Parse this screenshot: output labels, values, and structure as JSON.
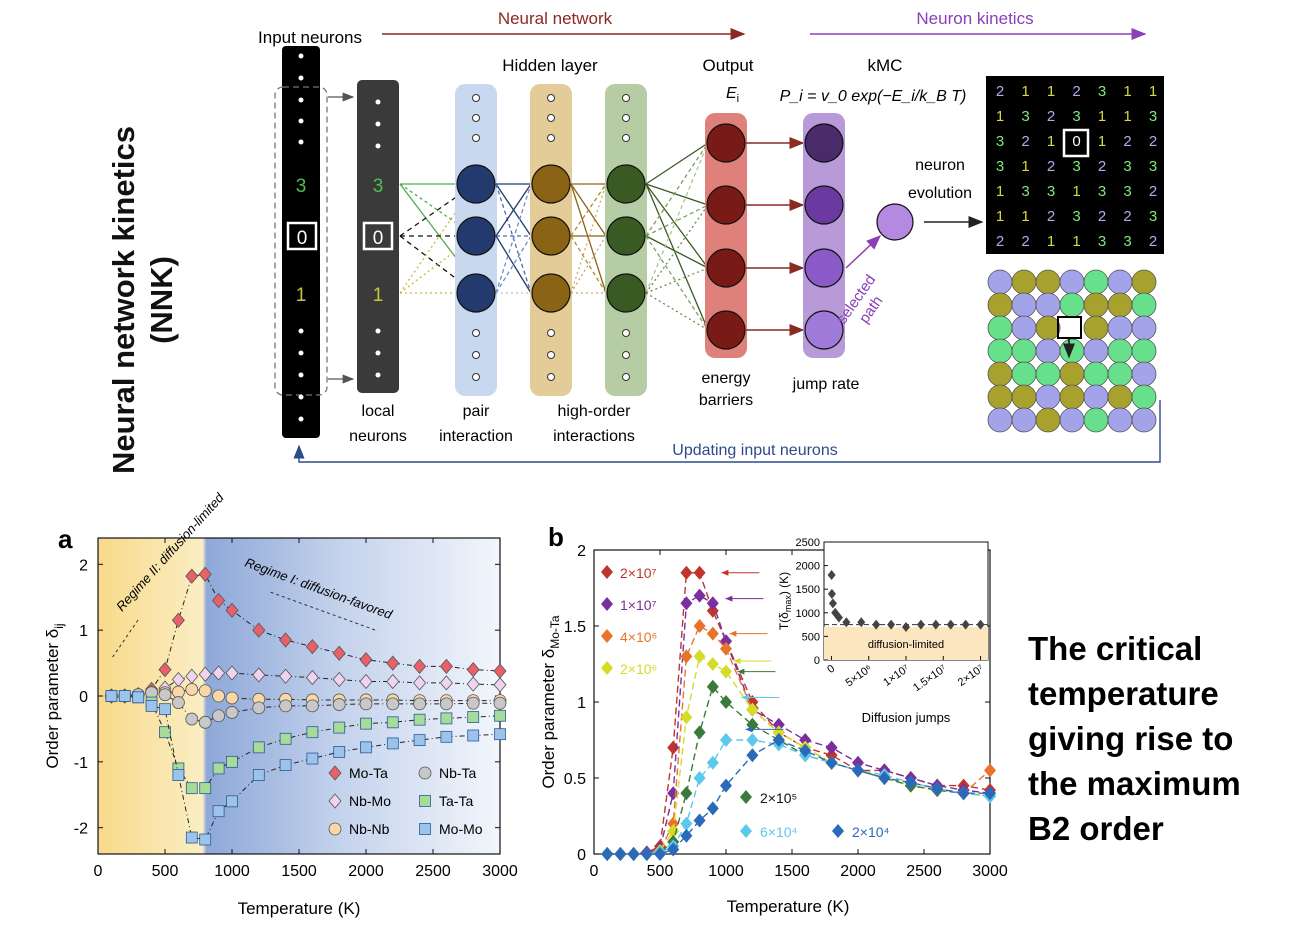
{
  "side_title": {
    "line1": "Neural network kinetics",
    "line2": "(NNK)"
  },
  "diagram": {
    "arrow_nn": "Neural network",
    "arrow_kinetics": "Neuron kinetics",
    "input_neurons": "Input neurons",
    "hidden_layer": "Hidden layer",
    "output": "Output",
    "output_symbol": "E",
    "output_sub": "i",
    "kmc": "kMC",
    "kmc_formula": "P_i = v_0 exp(−E_i/k_B T)",
    "local_neurons_1": "local",
    "local_neurons_2": "neurons",
    "pair_1": "pair",
    "pair_2": "interaction",
    "high_1": "high-order",
    "high_2": "interactions",
    "energy_1": "energy",
    "energy_2": "barriers",
    "jump_rate": "jump rate",
    "neuron_evolution_1": "neuron",
    "neuron_evolution_2": "evolution",
    "selected_path_1": "selected",
    "selected_path_2": "path",
    "updating": "Updating input neurons",
    "digit_3": "3",
    "digit_0": "0",
    "digit_1": "1",
    "grid": [
      [
        "2",
        "1",
        "1",
        "2",
        "3",
        "1",
        "1"
      ],
      [
        "1",
        "3",
        "2",
        "3",
        "1",
        "1",
        "3"
      ],
      [
        "3",
        "2",
        "1",
        "0",
        "1",
        "2",
        "2"
      ],
      [
        "3",
        "1",
        "2",
        "3",
        "2",
        "3",
        "3"
      ],
      [
        "1",
        "3",
        "3",
        "1",
        "3",
        "3",
        "2"
      ],
      [
        "1",
        "1",
        "2",
        "3",
        "2",
        "2",
        "3"
      ],
      [
        "2",
        "2",
        "1",
        "1",
        "3",
        "3",
        "2"
      ]
    ],
    "grid_colors": {
      "1": "#d9d945",
      "2": "#b2a8f0",
      "3": "#7de87d",
      "0": "#ffffff"
    },
    "atom_colors": {
      "1": "#a9a12e",
      "2": "#a3a3ea",
      "3": "#66e08a"
    },
    "atoms": [
      [
        "2",
        "1",
        "1",
        "2",
        "3",
        "2",
        "1"
      ],
      [
        "1",
        "2",
        "2",
        "3",
        "1",
        "1",
        "3"
      ],
      [
        "3",
        "2",
        "1",
        "3",
        "1",
        "2",
        "2"
      ],
      [
        "3",
        "3",
        "2",
        "3",
        "2",
        "3",
        "3"
      ],
      [
        "1",
        "3",
        "3",
        "1",
        "3",
        "3",
        "2"
      ],
      [
        "1",
        "1",
        "2",
        "1",
        "2",
        "1",
        "3"
      ],
      [
        "2",
        "2",
        "1",
        "2",
        "3",
        "2",
        "2"
      ]
    ]
  },
  "note": {
    "l1": "The critical",
    "l2": "temperature",
    "l3": "giving rise to",
    "l4": "the maximum",
    "l5": "B2 order"
  },
  "chart_data": [
    {
      "type": "scatter",
      "panel_label": "a",
      "xlabel": "Temperature (K)",
      "ylabel": "Order parameter δ_ij",
      "xlim": [
        0,
        3000
      ],
      "ylim": [
        -2.4,
        2.4
      ],
      "xticks": [
        "0",
        "500",
        "1000",
        "1500",
        "2000",
        "2500",
        "3000"
      ],
      "yticks": [
        "-2",
        "-1",
        "0",
        "1",
        "2"
      ],
      "annotations": [
        "Regime II: diffusion-limited",
        "Regime I: diffusion-favored"
      ],
      "x": [
        100,
        200,
        300,
        400,
        500,
        600,
        700,
        800,
        900,
        1000,
        1200,
        1400,
        1600,
        1800,
        2000,
        2200,
        2400,
        2600,
        2800,
        3000
      ],
      "series": [
        {
          "name": "Mo-Ta",
          "color": "#e8606a",
          "marker": "diamond",
          "values": [
            0,
            0,
            0.02,
            0.1,
            0.4,
            1.15,
            1.82,
            1.85,
            1.45,
            1.3,
            1.0,
            0.85,
            0.75,
            0.65,
            0.55,
            0.5,
            0.45,
            0.45,
            0.4,
            0.38
          ]
        },
        {
          "name": "Nb-Mo",
          "color": "#eed4ee",
          "marker": "diamond",
          "values": [
            0,
            0,
            0.02,
            0.05,
            0.12,
            0.25,
            0.3,
            0.33,
            0.35,
            0.35,
            0.32,
            0.3,
            0.28,
            0.25,
            0.22,
            0.22,
            0.2,
            0.2,
            0.18,
            0.17
          ]
        },
        {
          "name": "Nb-Nb",
          "color": "#fad7a8",
          "marker": "circle",
          "values": [
            0,
            0,
            0.02,
            0.05,
            0.05,
            0.06,
            0.1,
            0.08,
            0,
            -0.03,
            -0.05,
            -0.05,
            -0.06,
            -0.06,
            -0.06,
            -0.06,
            -0.07,
            -0.07,
            -0.07,
            -0.07
          ]
        },
        {
          "name": "Nb-Ta",
          "color": "#c8c8c8",
          "marker": "circle",
          "values": [
            0,
            0,
            0.02,
            0.05,
            0.02,
            -0.1,
            -0.35,
            -0.4,
            -0.3,
            -0.25,
            -0.18,
            -0.15,
            -0.15,
            -0.13,
            -0.12,
            -0.12,
            -0.12,
            -0.12,
            -0.11,
            -0.11
          ]
        },
        {
          "name": "Ta-Ta",
          "color": "#a7dc98",
          "marker": "square",
          "values": [
            0,
            0,
            -0.02,
            -0.1,
            -0.55,
            -1.1,
            -1.4,
            -1.4,
            -1.1,
            -1.0,
            -0.78,
            -0.65,
            -0.55,
            -0.48,
            -0.42,
            -0.4,
            -0.36,
            -0.34,
            -0.32,
            -0.3
          ]
        },
        {
          "name": "Mo-Mo",
          "color": "#9cc3ea",
          "marker": "square",
          "values": [
            0,
            0,
            -0.02,
            -0.15,
            -0.2,
            -1.2,
            -2.15,
            -2.18,
            -1.75,
            -1.6,
            -1.2,
            -1.05,
            -0.95,
            -0.85,
            -0.78,
            -0.72,
            -0.67,
            -0.62,
            -0.6,
            -0.58
          ]
        }
      ]
    },
    {
      "type": "scatter",
      "panel_label": "b",
      "xlabel": "Temperature (K)",
      "ylabel": "Order parameter δ_Mo-Ta",
      "xlim": [
        0,
        3000
      ],
      "ylim": [
        0,
        2
      ],
      "xticks": [
        "0",
        "500",
        "1000",
        "1500",
        "2000",
        "2500",
        "3000"
      ],
      "yticks": [
        "0",
        "0.5",
        "1",
        "1.5",
        "2"
      ],
      "x": [
        100,
        200,
        300,
        400,
        500,
        600,
        700,
        800,
        900,
        1000,
        1200,
        1400,
        1600,
        1800,
        2000,
        2200,
        2400,
        2600,
        2800,
        3000
      ],
      "series": [
        {
          "name": "2×10⁷",
          "color": "#c0342c",
          "values": [
            0,
            0,
            0,
            0.01,
            0.05,
            0.7,
            1.85,
            1.85,
            1.6,
            1.4,
            1.0,
            0.8,
            0.7,
            0.65,
            0.55,
            0.55,
            0.5,
            0.45,
            0.45,
            0.42
          ]
        },
        {
          "name": "1×10⁷",
          "color": "#7b2e9e",
          "values": [
            0,
            0,
            0,
            0.01,
            0.03,
            0.4,
            1.65,
            1.7,
            1.65,
            1.4,
            0.95,
            0.85,
            0.75,
            0.7,
            0.6,
            0.55,
            0.5,
            0.45,
            0.42,
            0.4
          ]
        },
        {
          "name": "4×10⁶",
          "color": "#e8732c",
          "values": [
            0,
            0,
            0,
            0,
            0.02,
            0.2,
            1.3,
            1.5,
            1.45,
            1.35,
            0.95,
            0.8,
            0.7,
            0.6,
            0.55,
            0.5,
            0.45,
            0.42,
            0.4,
            0.55
          ]
        },
        {
          "name": "2×10⁶",
          "color": "#d4dc28",
          "values": [
            0,
            0,
            0,
            0,
            0.02,
            0.15,
            0.9,
            1.3,
            1.25,
            1.2,
            0.95,
            0.8,
            0.7,
            0.6,
            0.55,
            0.5,
            0.45,
            0.42,
            0.4,
            0.38
          ]
        },
        {
          "name": "2×10⁵",
          "color": "#3a7a3a",
          "values": [
            0,
            0,
            0,
            0,
            0.01,
            0.08,
            0.4,
            0.8,
            1.1,
            1.0,
            0.85,
            0.75,
            0.65,
            0.6,
            0.55,
            0.5,
            0.45,
            0.42,
            0.4,
            0.38
          ]
        },
        {
          "name": "6×10⁴",
          "color": "#5cc8ec",
          "values": [
            0,
            0,
            0,
            0,
            0.01,
            0.05,
            0.2,
            0.5,
            0.6,
            0.75,
            0.75,
            0.72,
            0.65,
            0.6,
            0.55,
            0.52,
            0.47,
            0.43,
            0.4,
            0.38
          ]
        },
        {
          "name": "2×10⁴",
          "color": "#2a6ab8",
          "values": [
            0,
            0,
            0,
            0,
            0,
            0.03,
            0.12,
            0.22,
            0.3,
            0.45,
            0.65,
            0.75,
            0.68,
            0.6,
            0.55,
            0.5,
            0.47,
            0.43,
            0.4,
            0.4
          ]
        }
      ],
      "peak_arrow_y": [
        1.85,
        1.68,
        1.45,
        1.27,
        1.2,
        1.03,
        0.82
      ]
    },
    {
      "type": "scatter",
      "panel_label": "inset",
      "xlabel": "Diffusion jumps",
      "ylabel": "T(δ_max) (K)",
      "xlim": [
        -1000000,
        21000000
      ],
      "ylim": [
        0,
        2500
      ],
      "xticks": [
        "0",
        "5×10⁶",
        "1×10⁷",
        "1.5×10⁷",
        "2×10⁷"
      ],
      "yticks": [
        "0",
        "500",
        "1000",
        "1500",
        "2000",
        "2500"
      ],
      "annotation": "diffusion-limited",
      "shaded_below": 700,
      "x": [
        20000,
        60000,
        200000,
        500000,
        1000000,
        2000000,
        4000000,
        6000000,
        8000000,
        10000000,
        12000000,
        14000000,
        16000000,
        18000000,
        20000000
      ],
      "values": [
        1800,
        1400,
        1200,
        1000,
        900,
        800,
        800,
        750,
        750,
        700,
        750,
        750,
        750,
        750,
        750
      ]
    }
  ]
}
